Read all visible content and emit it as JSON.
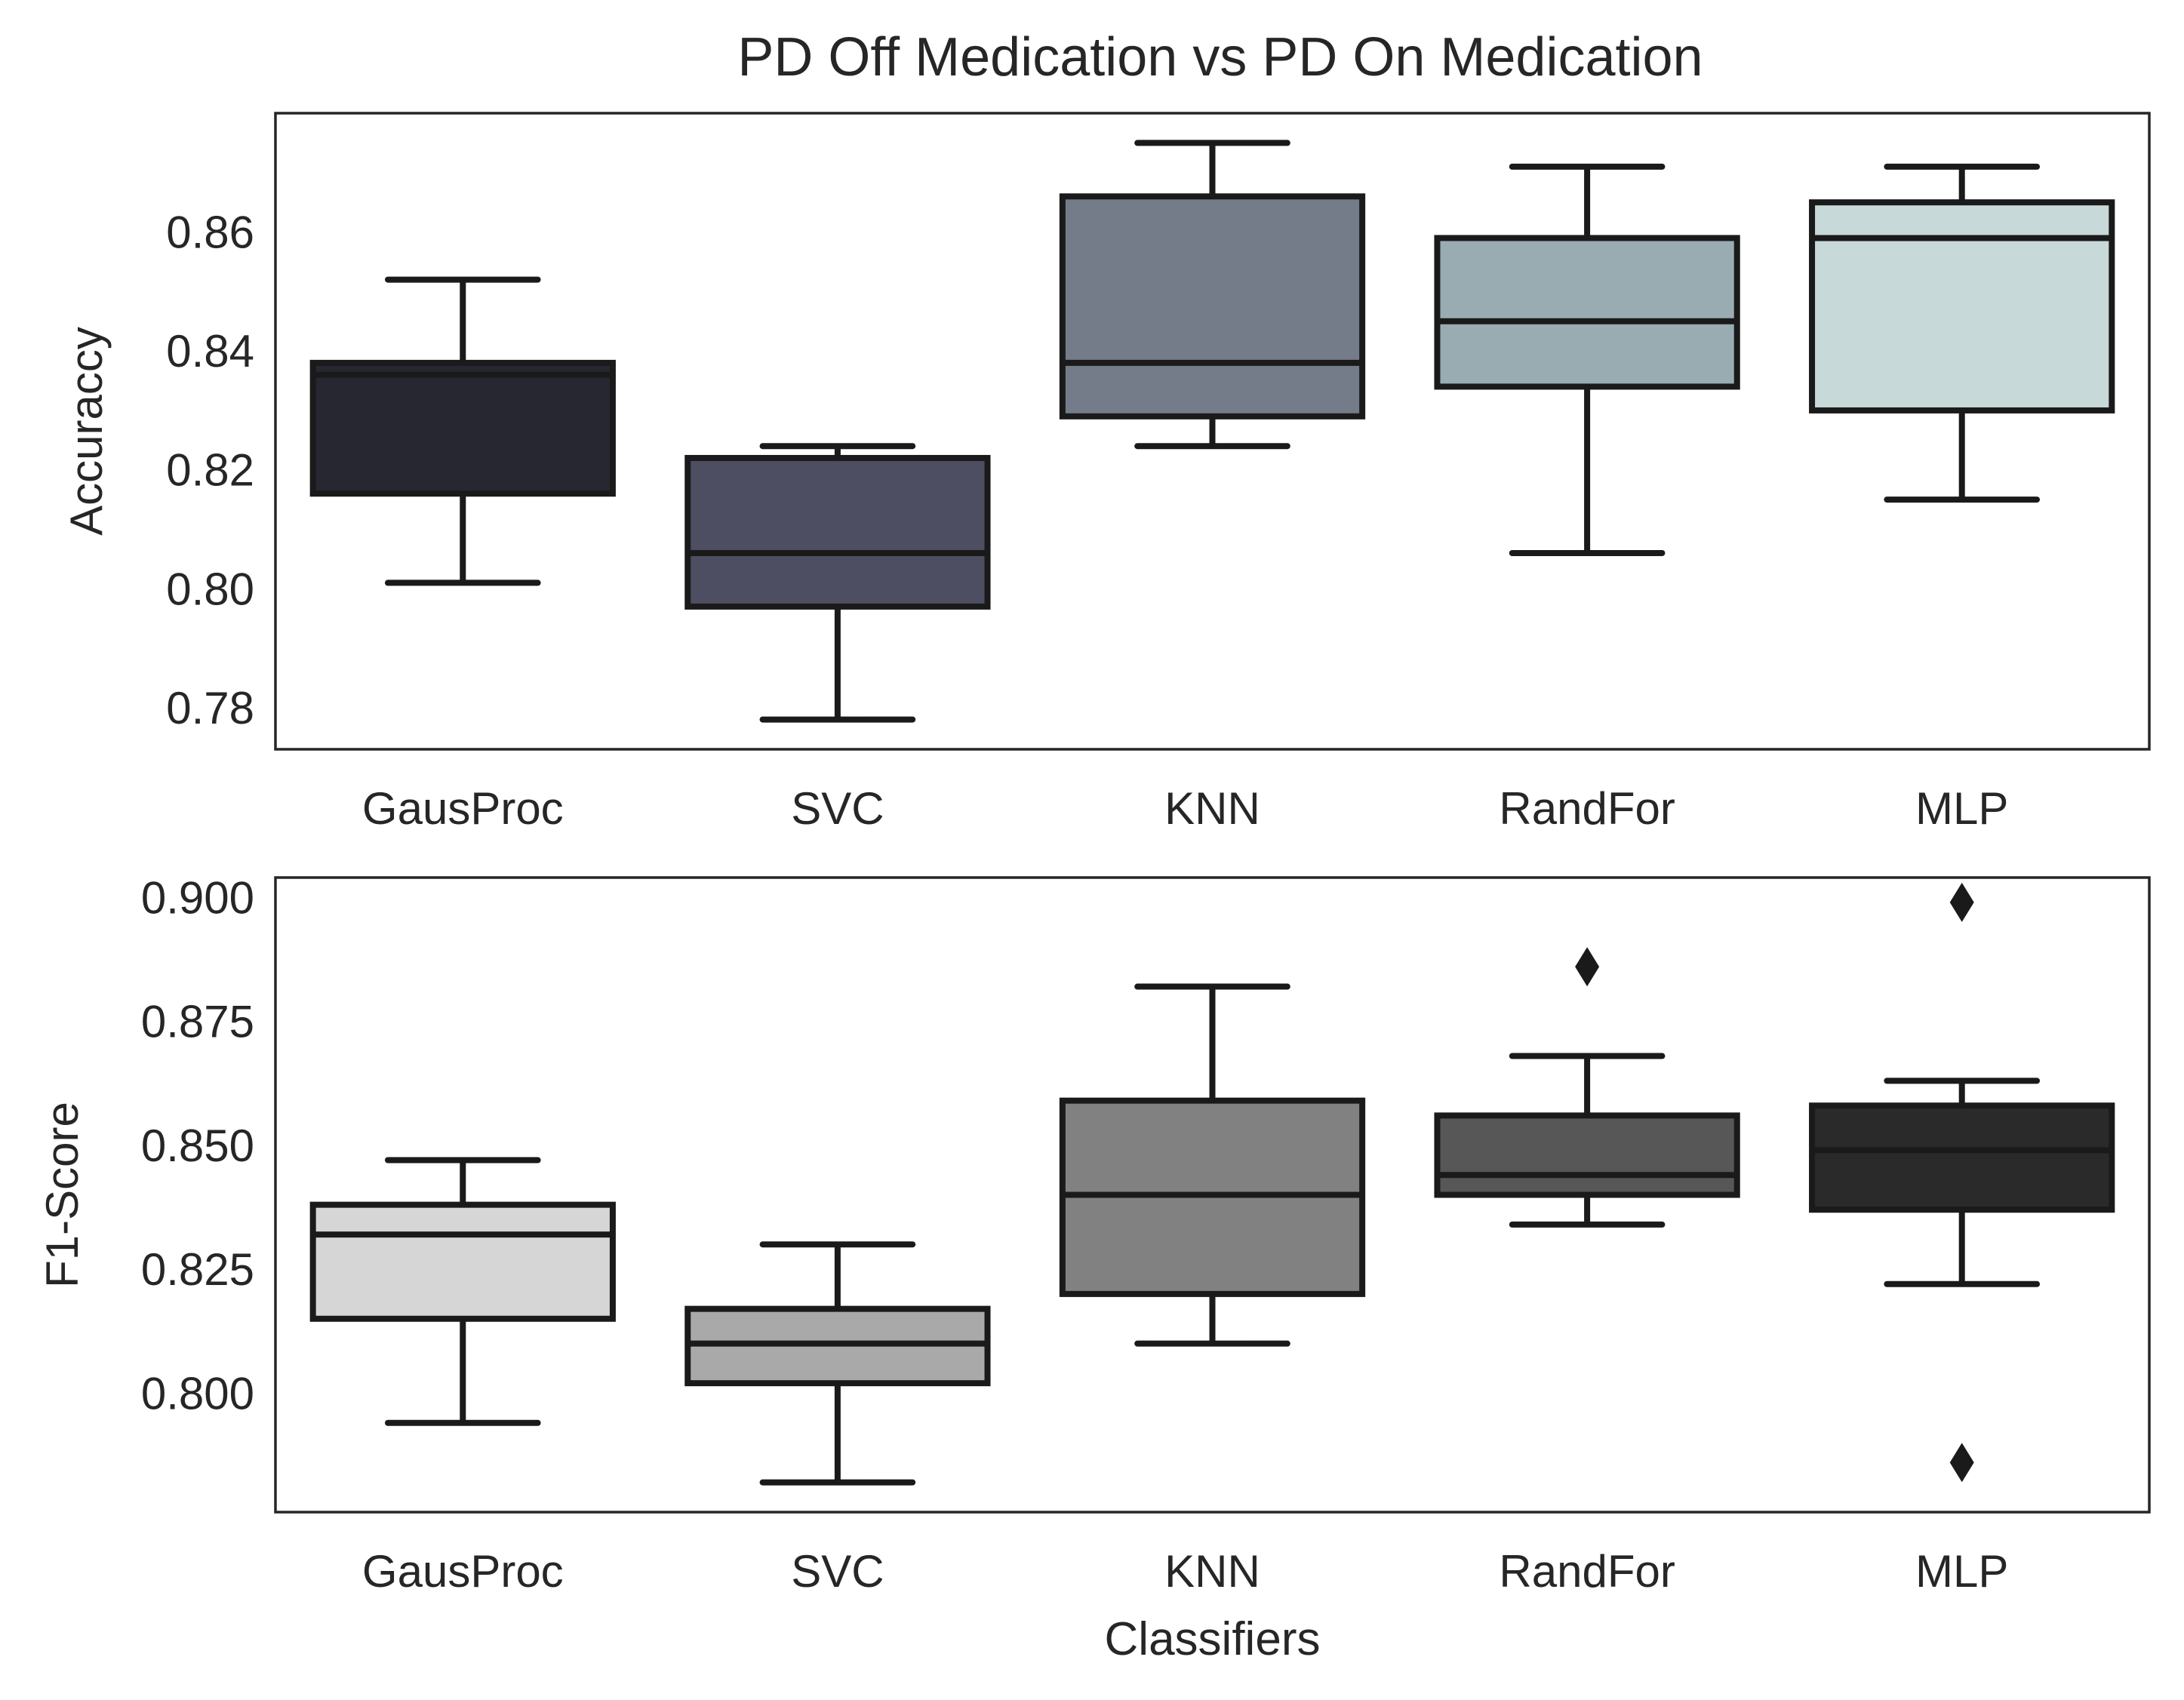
{
  "chart_data": [
    {
      "type": "box",
      "title": "PD Off Medication vs PD On Medication",
      "xlabel": "",
      "ylabel": "Accuraccy",
      "categories": [
        "GausProc",
        "SVC",
        "KNN",
        "RandFor",
        "MLP"
      ],
      "ylim": [
        0.773,
        0.88
      ],
      "yticks": [
        0.78,
        0.8,
        0.82,
        0.84,
        0.86
      ],
      "ytick_labels": [
        "0.78",
        "0.80",
        "0.82",
        "0.84",
        "0.86"
      ],
      "boxes": [
        {
          "category": "GausProc",
          "whisker_low": 0.801,
          "q1": 0.816,
          "median": 0.836,
          "q3": 0.838,
          "whisker_high": 0.852,
          "fliers": [],
          "color": "#272731"
        },
        {
          "category": "SVC",
          "whisker_low": 0.778,
          "q1": 0.797,
          "median": 0.806,
          "q3": 0.822,
          "whisker_high": 0.824,
          "fliers": [],
          "color": "#4e4e62"
        },
        {
          "category": "KNN",
          "whisker_low": 0.824,
          "q1": 0.829,
          "median": 0.838,
          "q3": 0.866,
          "whisker_high": 0.875,
          "fliers": [],
          "color": "#747c89"
        },
        {
          "category": "RandFor",
          "whisker_low": 0.806,
          "q1": 0.834,
          "median": 0.845,
          "q3": 0.859,
          "whisker_high": 0.871,
          "fliers": [],
          "color": "#99acb1"
        },
        {
          "category": "MLP",
          "whisker_low": 0.815,
          "q1": 0.83,
          "median": 0.859,
          "q3": 0.865,
          "whisker_high": 0.871,
          "fliers": [],
          "color": "#c8d9d9"
        }
      ]
    },
    {
      "type": "box",
      "title": "",
      "xlabel": "Classifiers",
      "ylabel": "F1-Score",
      "categories": [
        "GausProc",
        "SVC",
        "KNN",
        "RandFor",
        "MLP"
      ],
      "ylim": [
        0.776,
        0.904
      ],
      "yticks": [
        0.8,
        0.825,
        0.85,
        0.875,
        0.9
      ],
      "ytick_labels": [
        "0.800",
        "0.825",
        "0.850",
        "0.875",
        "0.900"
      ],
      "boxes": [
        {
          "category": "GausProc",
          "whisker_low": 0.794,
          "q1": 0.815,
          "median": 0.832,
          "q3": 0.838,
          "whisker_high": 0.847,
          "fliers": [],
          "color": "#d6d6d6"
        },
        {
          "category": "SVC",
          "whisker_low": 0.782,
          "q1": 0.802,
          "median": 0.81,
          "q3": 0.817,
          "whisker_high": 0.83,
          "fliers": [],
          "color": "#a9a9a9"
        },
        {
          "category": "KNN",
          "whisker_low": 0.81,
          "q1": 0.82,
          "median": 0.84,
          "q3": 0.859,
          "whisker_high": 0.882,
          "fliers": [],
          "color": "#818181"
        },
        {
          "category": "RandFor",
          "whisker_low": 0.834,
          "q1": 0.84,
          "median": 0.844,
          "q3": 0.856,
          "whisker_high": 0.868,
          "fliers": [
            0.886
          ],
          "color": "#575757"
        },
        {
          "category": "MLP",
          "whisker_low": 0.822,
          "q1": 0.837,
          "median": 0.849,
          "q3": 0.858,
          "whisker_high": 0.863,
          "fliers": [
            0.899,
            0.786
          ],
          "color": "#2a2a2a"
        }
      ]
    }
  ]
}
